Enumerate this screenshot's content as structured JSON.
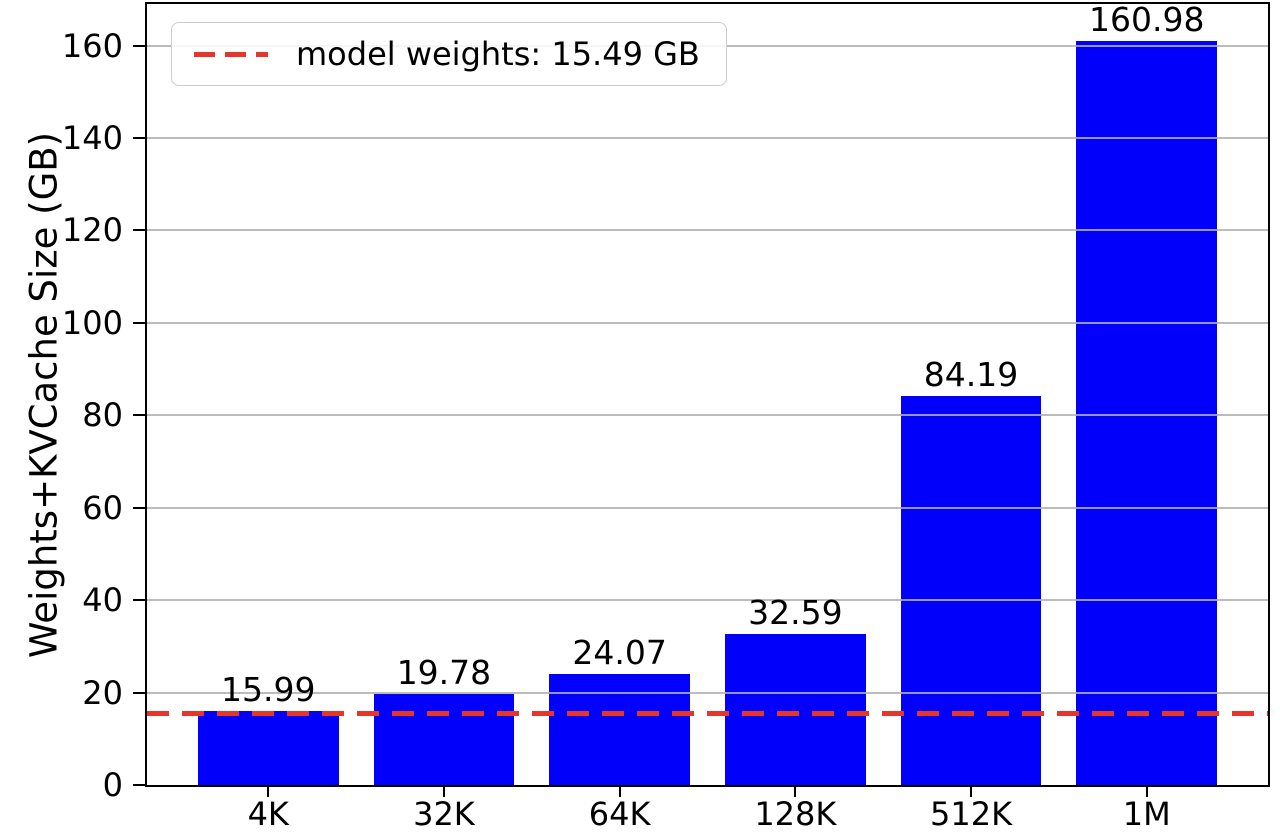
{
  "chart_data": {
    "type": "bar",
    "title": "",
    "xlabel": "",
    "ylabel": "Weights+KVCache Size (GB)",
    "categories": [
      "4K",
      "32K",
      "64K",
      "128K",
      "512K",
      "1M"
    ],
    "values": [
      15.99,
      19.78,
      24.07,
      32.59,
      84.19,
      160.98
    ],
    "bar_labels": [
      "15.99",
      "19.78",
      "24.07",
      "32.59",
      "84.19",
      "160.98"
    ],
    "yticks": [
      0,
      20,
      40,
      60,
      80,
      100,
      120,
      140,
      160
    ],
    "ytick_labels": [
      "0",
      "20",
      "40",
      "60",
      "80",
      "100",
      "120",
      "140",
      "160"
    ],
    "ylim": [
      0,
      169
    ],
    "xlim": [
      -0.69,
      5.69
    ],
    "bar_width_units": 0.8,
    "grid": true,
    "reference_line": {
      "value": 15.49,
      "style": "dashed",
      "label": "model weights: 15.49 GB"
    },
    "legend": {
      "position": "upper left",
      "entries": [
        {
          "label": "model weights: 15.49 GB",
          "line_style": "dashed"
        }
      ]
    },
    "colors": {
      "bar": "#0000fb",
      "reference_line": "#e6352b",
      "grid": "#b0b0b0",
      "spine": "#000000",
      "text": "#000000"
    }
  }
}
